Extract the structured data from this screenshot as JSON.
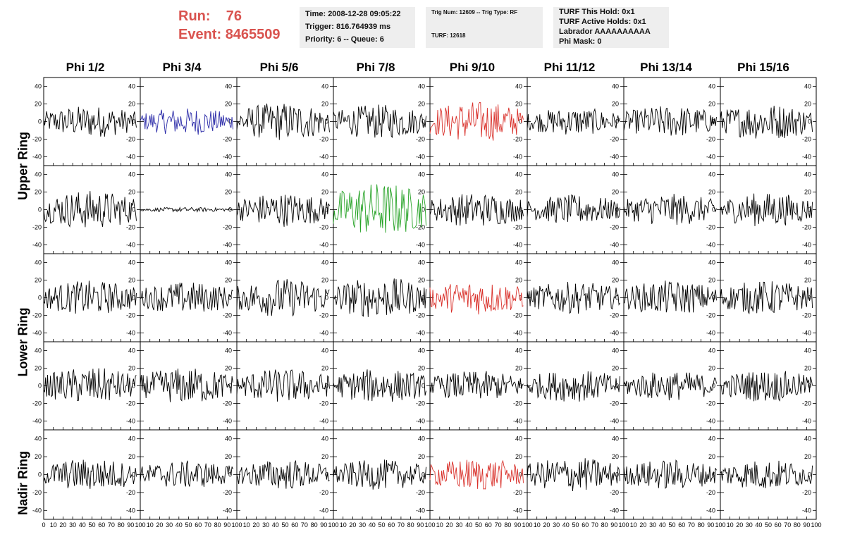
{
  "header": {
    "run_label": "Run:",
    "run_value": "76",
    "event_label": "Event:",
    "event_value": "8465509",
    "time_line": "Time: 2008-12-28 09:05:22",
    "trigger_line": "Trigger: 816.764939 ms",
    "priority_line": "Priority: 6 -- Queue: 6",
    "trig_num_line": "Trig Num: 12609 -- Trig Type: RF",
    "turf_line": "TURF: 12618",
    "turf_hold_line": "TURF This Hold: 0x1",
    "turf_active_line": "TURF Active Holds: 0x1",
    "labrador_line": "Labrador AAAAAAAAAA",
    "phi_mask_line": "Phi Mask: 0"
  },
  "columns": [
    "Phi 1/2",
    "Phi 3/4",
    "Phi 5/6",
    "Phi 7/8",
    "Phi 9/10",
    "Phi 11/12",
    "Phi 13/14",
    "Phi 15/16"
  ],
  "rows": [
    "Upper Ring",
    "Lower Ring",
    "Nadir Ring"
  ],
  "colors": {
    "black": "#000000",
    "blue": "#2a2aa8",
    "green": "#27a327",
    "red": "#d9312b"
  },
  "chart_data": {
    "type": "line",
    "description_units": "waveform amplitude vs sample index",
    "xlim": [
      0,
      100
    ],
    "ylim": [
      -50,
      50
    ],
    "x_ticks": [
      0,
      10,
      20,
      30,
      40,
      50,
      60,
      70,
      80,
      90,
      100
    ],
    "y_ticks": [
      -40,
      -20,
      0,
      20,
      40
    ],
    "panels": [
      [
        {
          "color": "black",
          "amp": 14
        },
        {
          "color": "blue",
          "amp": 12
        },
        {
          "color": "black",
          "amp": 17
        },
        {
          "color": "black",
          "amp": 15
        },
        {
          "color": "red",
          "amp": 18
        },
        {
          "color": "black",
          "amp": 12
        },
        {
          "color": "black",
          "amp": 14
        },
        {
          "color": "black",
          "amp": 16
        }
      ],
      [
        {
          "color": "black",
          "amp": 17
        },
        {
          "color": "black",
          "amp": 2
        },
        {
          "color": "black",
          "amp": 15
        },
        {
          "color": "green",
          "amp": 24
        },
        {
          "color": "black",
          "amp": 15
        },
        {
          "color": "black",
          "amp": 13
        },
        {
          "color": "black",
          "amp": 14
        },
        {
          "color": "black",
          "amp": 15
        }
      ],
      [
        {
          "color": "black",
          "amp": 15
        },
        {
          "color": "black",
          "amp": 14
        },
        {
          "color": "black",
          "amp": 17
        },
        {
          "color": "black",
          "amp": 18
        },
        {
          "color": "red",
          "amp": 15
        },
        {
          "color": "black",
          "amp": 14
        },
        {
          "color": "black",
          "amp": 15
        },
        {
          "color": "black",
          "amp": 15
        }
      ],
      [
        {
          "color": "black",
          "amp": 16
        },
        {
          "color": "black",
          "amp": 16
        },
        {
          "color": "black",
          "amp": 15
        },
        {
          "color": "black",
          "amp": 15
        },
        {
          "color": "black",
          "amp": 13
        },
        {
          "color": "black",
          "amp": 14
        },
        {
          "color": "black",
          "amp": 13
        },
        {
          "color": "black",
          "amp": 14
        }
      ],
      [
        {
          "color": "black",
          "amp": 14
        },
        {
          "color": "black",
          "amp": 12
        },
        {
          "color": "black",
          "amp": 13
        },
        {
          "color": "black",
          "amp": 13
        },
        {
          "color": "red",
          "amp": 14
        },
        {
          "color": "black",
          "amp": 15
        },
        {
          "color": "black",
          "amp": 13
        },
        {
          "color": "black",
          "amp": 13
        }
      ]
    ]
  }
}
